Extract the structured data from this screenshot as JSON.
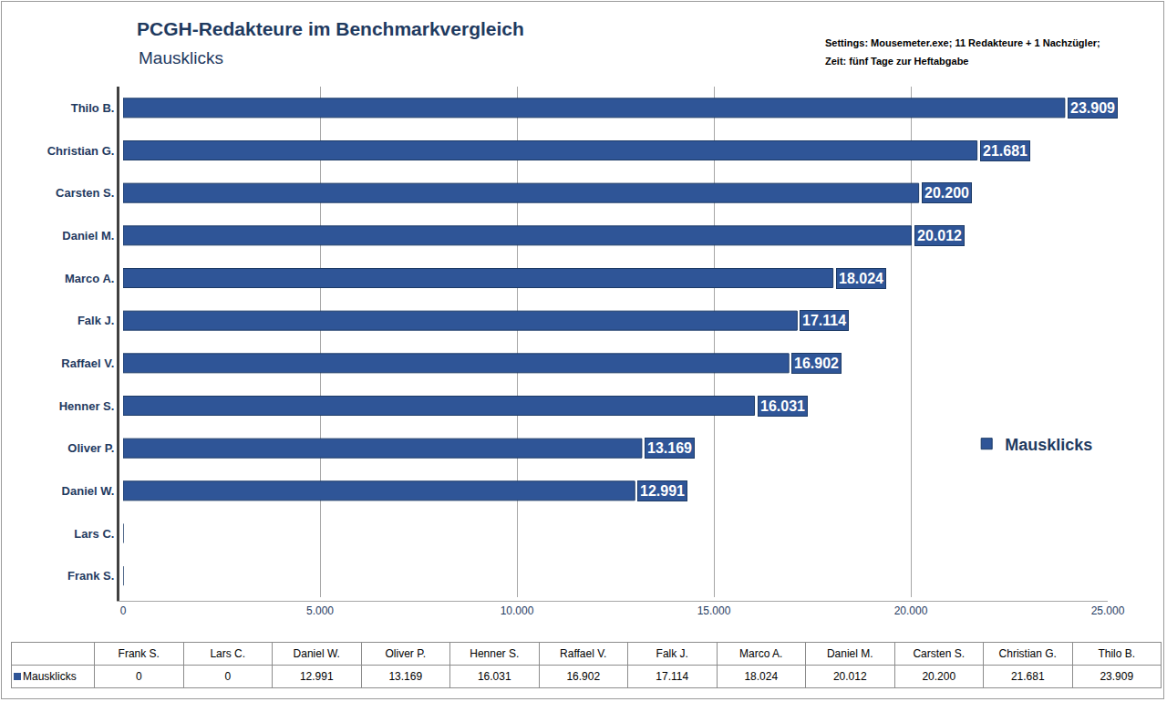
{
  "chart_data": {
    "type": "bar",
    "orientation": "horizontal",
    "title": "PCGH-Redakteure im Benchmarkvergleich",
    "subtitle": "Mausklicks",
    "annotations": [
      "Settings: Mousemeter.exe; 11 Redakteure + 1 Nachzügler;",
      "Zeit: fünf Tage zur Heftabgabe"
    ],
    "categories": [
      "Frank S.",
      "Lars C.",
      "Daniel W.",
      "Oliver P.",
      "Henner S.",
      "Raffael V.",
      "Falk J.",
      "Marco A.",
      "Daniel M.",
      "Carsten S.",
      "Christian G.",
      "Thilo B."
    ],
    "series": [
      {
        "name": "Mausklicks",
        "color": "#2f5597",
        "values": [
          0,
          0,
          12991,
          13169,
          16031,
          16902,
          17114,
          18024,
          20012,
          20200,
          21681,
          23909
        ],
        "value_labels": [
          null,
          null,
          "12.991",
          "13.169",
          "16.031",
          "16.902",
          "17.114",
          "18.024",
          "20.012",
          "20.200",
          "21.681",
          "23.909"
        ]
      }
    ],
    "xlim": [
      0,
      25000
    ],
    "xticks": [
      0,
      {
        "value": 5000,
        "label": "5.000"
      },
      {
        "value": 10000,
        "label": "10.000"
      },
      {
        "value": 15000,
        "label": "15.000"
      },
      {
        "value": 20000,
        "label": "20.000"
      },
      {
        "value": 25000,
        "label": "25.000"
      }
    ],
    "grid": true,
    "legend": "right",
    "data_labels": true
  }
}
